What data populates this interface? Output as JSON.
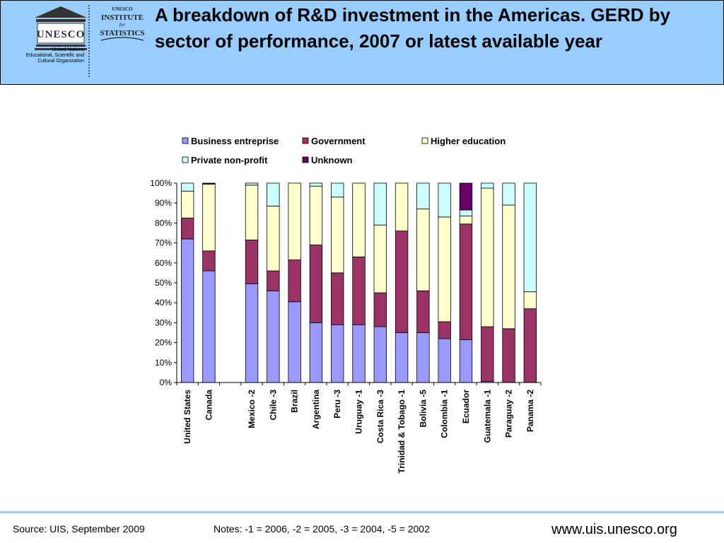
{
  "header": {
    "title": "A breakdown of R&D investment in the Americas. GERD by sector of performance, 2007 or latest available year",
    "unesco_logo_text": "UNESCO",
    "unesco_caption": [
      "United Nations",
      "Educational, Scientific and",
      "Cultural Organization"
    ],
    "uis_logo_text": [
      "UNESCO",
      "INSTITUTE",
      "for",
      "STATISTICS"
    ]
  },
  "footer": {
    "source": "Source: UIS, September 2009",
    "notes": "Notes: -1 = 2006, -2 = 2005, -3 = 2004, -5 = 2002",
    "url": "www.uis.unesco.org"
  },
  "colors": {
    "header_bg": "#99ccff",
    "business": "#9999ff",
    "government": "#993366",
    "higher_education": "#ffffcc",
    "private_non_profit": "#ccffff",
    "unknown": "#660066"
  },
  "chart_data": {
    "type": "bar",
    "stacked": true,
    "percent": true,
    "ylim": [
      0,
      100
    ],
    "yticks": [
      "0%",
      "10%",
      "20%",
      "30%",
      "40%",
      "50%",
      "60%",
      "70%",
      "80%",
      "90%",
      "100%"
    ],
    "grid": false,
    "legend_position": "top",
    "categories": [
      "United States",
      "Canada",
      "",
      "Mexico -2",
      "Chile -3",
      "Brazil",
      "Argentina",
      "Peru -3",
      "Uruguay -1",
      "Costa Rica -3",
      "Trinidad & Tobago -1",
      "Bolivia -5",
      "Colombia -1",
      "Ecuador",
      "Guatemala -1",
      "Paraguay -2",
      "Panama -2"
    ],
    "series": [
      {
        "name": "Business entreprise",
        "color": "#9999ff",
        "values": [
          72,
          56,
          0,
          49.5,
          46,
          40.5,
          30,
          29,
          29,
          28,
          25,
          25,
          22,
          21.5,
          0.5,
          0,
          0
        ]
      },
      {
        "name": "Government",
        "color": "#993366",
        "values": [
          10.5,
          10,
          0,
          22,
          10,
          21,
          39,
          26,
          34,
          17,
          51,
          21,
          8.5,
          58,
          27.5,
          27,
          37
        ]
      },
      {
        "name": "Higher education",
        "color": "#ffffcc",
        "values": [
          13.5,
          33.5,
          0,
          27.5,
          32.5,
          38.5,
          29.5,
          38,
          37,
          34,
          24,
          41,
          52.5,
          4,
          69.5,
          62,
          8.5
        ]
      },
      {
        "name": "Private non-profit",
        "color": "#ccffff",
        "values": [
          4,
          0,
          0,
          1,
          11.5,
          0,
          1.5,
          7,
          0,
          21,
          0,
          13,
          17,
          3,
          2.5,
          11,
          54.5
        ]
      },
      {
        "name": "Unknown",
        "color": "#660066",
        "values": [
          0,
          0.5,
          0,
          0,
          0,
          0,
          0,
          0,
          0,
          0,
          0,
          0,
          0,
          13.5,
          0,
          0,
          0
        ]
      }
    ]
  }
}
